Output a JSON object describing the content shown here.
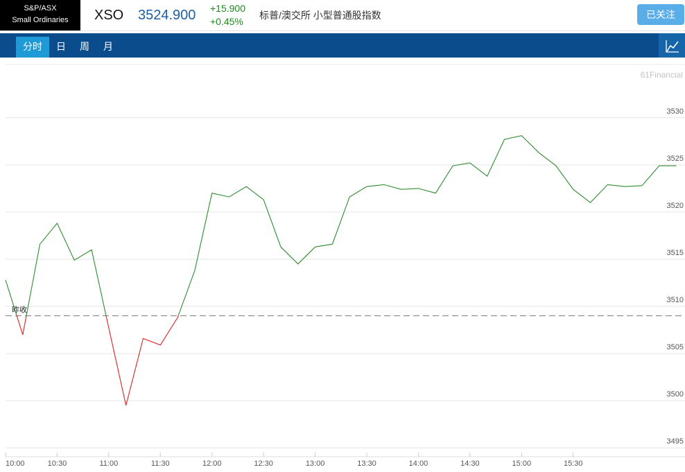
{
  "header": {
    "index_badge": [
      "S&P/ASX",
      "Small Ordinaries"
    ],
    "symbol": "XSO",
    "price": "3524.900",
    "change": "+15.900",
    "change_pct": "+0.45%",
    "name": "标普/澳交所 小型普通股指数",
    "follow_button": "已关注"
  },
  "tabs": [
    "分时",
    "日",
    "周",
    "月"
  ],
  "chart_data": {
    "type": "line",
    "watermark": "61Financial",
    "x": [
      "10:00",
      "10:10",
      "10:20",
      "10:30",
      "10:40",
      "10:50",
      "11:00",
      "11:10",
      "11:20",
      "11:30",
      "11:40",
      "11:50",
      "12:00",
      "12:10",
      "12:20",
      "12:30",
      "12:40",
      "12:50",
      "13:00",
      "13:10",
      "13:20",
      "13:30",
      "13:40",
      "13:50",
      "14:00",
      "14:10",
      "14:20",
      "14:30",
      "14:40",
      "14:50",
      "15:00",
      "15:10",
      "15:20",
      "15:30",
      "15:40",
      "15:50",
      "16:00",
      "16:10",
      "16:20",
      "16:30"
    ],
    "series": [
      {
        "name": "XSO",
        "color_up": "#2e8b2e",
        "color_down": "#e02020",
        "values": [
          3512.8,
          3507,
          3516.6,
          3518.8,
          3514.9,
          3516,
          3507.7,
          3499.5,
          3506.6,
          3505.9,
          3508.8,
          3513.8,
          3522,
          3521.6,
          3522.7,
          3521.3,
          3516.3,
          3514.5,
          3516.3,
          3516.6,
          3521.6,
          3522.7,
          3522.9,
          3522.4,
          3522.5,
          3522,
          3524.9,
          3525.2,
          3523.8,
          3527.7,
          3528.1,
          3526.3,
          3524.9,
          3522.4,
          3521,
          3522.9,
          3522.7,
          3522.8,
          3524.9,
          3524.9
        ]
      }
    ],
    "reference": {
      "label": "昨收",
      "value": 3509.0
    },
    "xlim": [
      "10:00",
      "16:35"
    ],
    "xticks": [
      "10:00",
      "10:30",
      "11:00",
      "11:30",
      "12:00",
      "12:30",
      "13:00",
      "13:30",
      "14:00",
      "14:30",
      "15:00",
      "15:30"
    ],
    "ylim": [
      3494.5,
      3530.5
    ],
    "yticks": [
      3495,
      3500,
      3505,
      3510,
      3515,
      3520,
      3525,
      3530
    ],
    "grid": true
  }
}
